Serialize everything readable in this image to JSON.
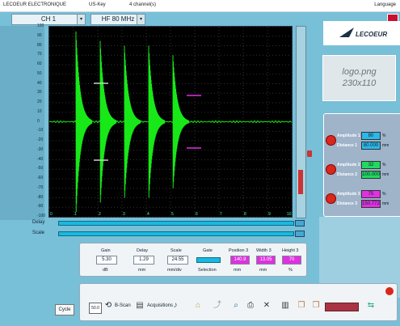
{
  "titlebar": {
    "company": "LECOEUR ELECTRONIQUE",
    "key": "US-Key",
    "channels": "4 channel(s)",
    "lang": "Language"
  },
  "channel_select": {
    "value": "CH 1"
  },
  "freq_select": {
    "value": "HF 80 MHz"
  },
  "logo_png": {
    "line1": "logo.png",
    "line2": "230x110"
  },
  "brand": {
    "text": "LECOEUR"
  },
  "panel": {
    "items": [
      {
        "amp_label": "Amplitude 1",
        "amp_value": "80",
        "amp_unit": "%",
        "dist_label": "Distance 1",
        "dist_value": "80.000",
        "dist_unit": "mm",
        "color": "#2ab8e8"
      },
      {
        "amp_label": "Amplitude 2",
        "amp_value": "32",
        "amp_unit": "%",
        "dist_label": "Distance 2",
        "dist_value": "100.000",
        "dist_unit": "mm",
        "color": "#22d860"
      },
      {
        "amp_label": "Amplitude 3",
        "amp_value": "75",
        "amp_unit": "%",
        "dist_label": "Distance 3",
        "dist_value": "150.772",
        "dist_unit": "mm",
        "color": "#e030e0"
      }
    ]
  },
  "tracks": {
    "delay": "Delay",
    "scale": "Scale"
  },
  "controls": {
    "gain_label": "Gain",
    "gain_value": "5.30",
    "gain_unit": "dB",
    "delay_label": "Delay",
    "delay_value": "1.29",
    "delay_unit": "mm",
    "scale_label": "Scale",
    "scale_value": "24.55",
    "scale_unit": "mm/div",
    "gate_label": "Gate",
    "gate_sub": "Selection",
    "position_label": "Position 3",
    "position_value": "140.9",
    "position_unit": "mm",
    "width_label": "Width 3",
    "width_value": "13.05",
    "width_unit": "mm",
    "height_label": "Height 3",
    "height_value": "70",
    "height_unit": "%"
  },
  "toolbar": {
    "cycle": "Cycle",
    "bscan": "B-Scan",
    "acquisitions": "Acquisitions",
    "setup_value": "50.0"
  },
  "scope": {
    "x_ticks": [
      "0",
      "1",
      "2",
      "3",
      "4",
      "5",
      "6",
      "7",
      "8",
      "9",
      "10"
    ],
    "y_ticks": [
      "100",
      "90",
      "80",
      "70",
      "60",
      "50",
      "40",
      "30",
      "20",
      "10",
      "0",
      "-10",
      "-20",
      "-30",
      "-40",
      "-50",
      "-60",
      "-70",
      "-80",
      "-90",
      "-100"
    ],
    "pulse_positions": [
      1.1,
      2.1,
      3.1,
      4.1,
      5.1
    ],
    "pulse_amplitude": [
      95,
      85,
      80,
      80,
      70
    ],
    "trace_color": "#18e818"
  }
}
